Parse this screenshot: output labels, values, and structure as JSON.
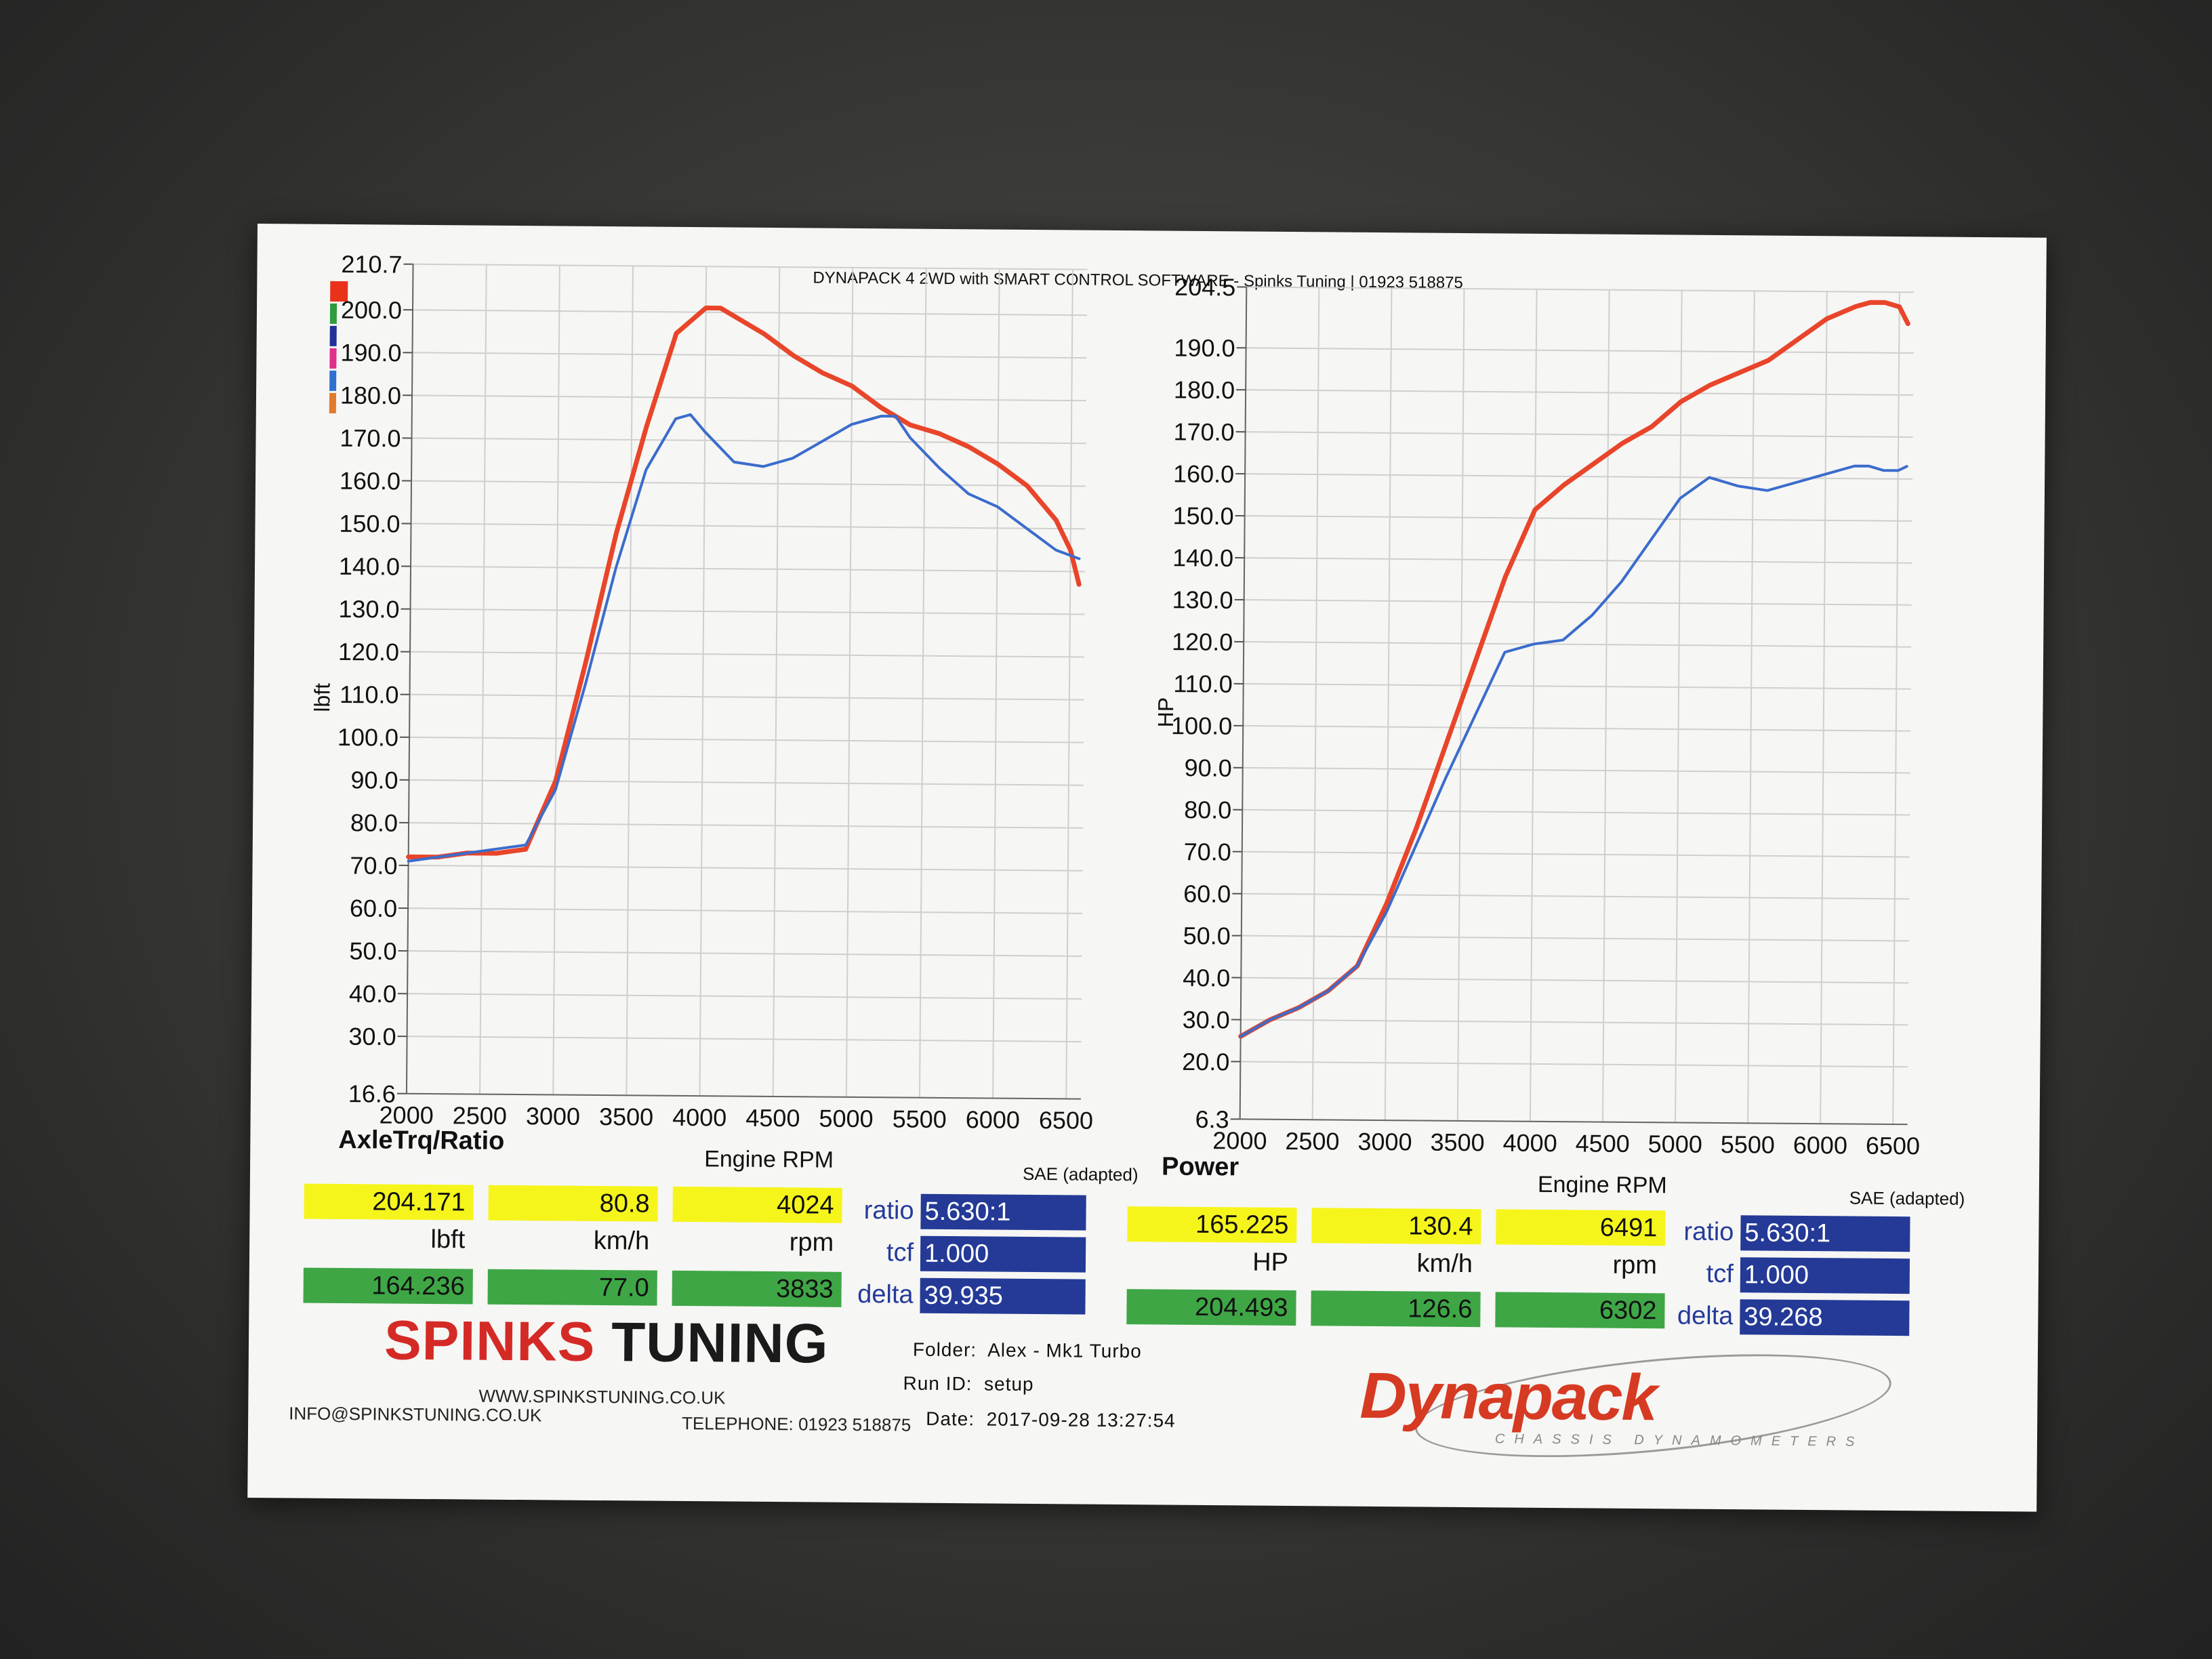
{
  "header": "DYNAPACK 4 2WD with SMART CONTROL SOFTWARE - Spinks Tuning | 01923 518875",
  "legend_swatch_colors": [
    "#e8321a",
    "#2e9c3c",
    "#23309a",
    "#e0308a",
    "#2f6fd0",
    "#e07a2e"
  ],
  "colors": {
    "red": "#e8452a",
    "blue": "#3b6ccc"
  },
  "chart_data": [
    {
      "type": "line",
      "title": "AxleTrq/Ratio",
      "xlabel": "Engine RPM",
      "ylabel": "lbft",
      "note": "SAE (adapted)",
      "xlim": [
        2000,
        6600
      ],
      "ylim": [
        16.6,
        210.7
      ],
      "x_ticks": [
        "2000",
        "2500",
        "3000",
        "3500",
        "4000",
        "4500",
        "5000",
        "5500",
        "6000",
        "6500"
      ],
      "y_ticks": [
        "210.7",
        "200.0",
        "190.0",
        "180.0",
        "170.0",
        "160.0",
        "150.0",
        "140.0",
        "130.0",
        "120.0",
        "110.0",
        "100.0",
        "90.0",
        "80.0",
        "70.0",
        "60.0",
        "50.0",
        "40.0",
        "30.0",
        "16.6"
      ],
      "grid": true,
      "series": [
        {
          "color": "#e8452a",
          "x": [
            2000,
            2200,
            2400,
            2600,
            2800,
            3000,
            3200,
            3400,
            3600,
            3800,
            4000,
            4100,
            4200,
            4400,
            4600,
            4800,
            5000,
            5200,
            5400,
            5600,
            5800,
            6000,
            6200,
            6400,
            6500,
            6560
          ],
          "y": [
            72,
            72,
            73,
            73,
            74,
            90,
            118,
            148,
            173,
            195,
            201,
            201,
            199,
            195,
            190,
            186,
            183,
            178,
            174,
            172,
            169,
            165,
            160,
            152,
            145,
            137
          ]
        },
        {
          "color": "#3b6ccc",
          "x": [
            2000,
            2200,
            2400,
            2600,
            2800,
            3000,
            3200,
            3400,
            3600,
            3800,
            3900,
            4000,
            4200,
            4400,
            4600,
            4800,
            5000,
            5200,
            5300,
            5400,
            5600,
            5800,
            6000,
            6200,
            6400,
            6560
          ],
          "y": [
            71,
            72,
            73,
            74,
            75,
            88,
            113,
            140,
            163,
            175,
            176,
            172,
            165,
            164,
            166,
            170,
            174,
            176,
            176,
            171,
            164,
            158,
            155,
            150,
            145,
            143
          ]
        }
      ]
    },
    {
      "type": "line",
      "title": "Power",
      "xlabel": "Engine RPM",
      "ylabel": "HP",
      "note": "SAE (adapted)",
      "xlim": [
        2000,
        6600
      ],
      "ylim": [
        6.3,
        204.5
      ],
      "x_ticks": [
        "2000",
        "2500",
        "3000",
        "3500",
        "4000",
        "4500",
        "5000",
        "5500",
        "6000",
        "6500"
      ],
      "y_ticks": [
        "204.5",
        "190.0",
        "180.0",
        "170.0",
        "160.0",
        "150.0",
        "140.0",
        "130.0",
        "120.0",
        "110.0",
        "100.0",
        "90.0",
        "80.0",
        "70.0",
        "60.0",
        "50.0",
        "40.0",
        "30.0",
        "20.0",
        "6.3"
      ],
      "grid": true,
      "series": [
        {
          "color": "#e8452a",
          "x": [
            2000,
            2200,
            2400,
            2600,
            2800,
            3000,
            3200,
            3400,
            3600,
            3800,
            4000,
            4200,
            4400,
            4600,
            4800,
            5000,
            5200,
            5400,
            5600,
            5800,
            6000,
            6200,
            6300,
            6400,
            6500,
            6560
          ],
          "y": [
            26,
            30,
            33,
            37,
            43,
            58,
            76,
            96,
            116,
            136,
            152,
            158,
            163,
            168,
            172,
            178,
            182,
            185,
            188,
            193,
            198,
            201,
            202,
            202,
            201,
            197
          ]
        },
        {
          "color": "#3b6ccc",
          "x": [
            2000,
            2200,
            2400,
            2600,
            2800,
            3000,
            3200,
            3400,
            3600,
            3800,
            4000,
            4200,
            4400,
            4600,
            4800,
            5000,
            5200,
            5400,
            5600,
            5800,
            6000,
            6200,
            6300,
            6400,
            6500,
            6560
          ],
          "y": [
            26,
            30,
            33,
            37,
            43,
            56,
            72,
            88,
            103,
            118,
            120,
            121,
            127,
            135,
            145,
            155,
            160,
            158,
            157,
            159,
            161,
            163,
            163,
            162,
            162,
            163
          ]
        }
      ]
    }
  ],
  "left_panel": {
    "yellow": [
      "204.171",
      "80.8",
      "4024"
    ],
    "units": [
      "lbft",
      "km/h",
      "rpm"
    ],
    "green": [
      "164.236",
      "77.0",
      "3833"
    ],
    "labels": [
      "ratio",
      "tcf",
      "delta"
    ],
    "blue": [
      "5.630:1",
      "1.000",
      "39.935"
    ]
  },
  "right_panel": {
    "yellow": [
      "165.225",
      "130.4",
      "6491"
    ],
    "units": [
      "HP",
      "km/h",
      "rpm"
    ],
    "green": [
      "204.493",
      "126.6",
      "6302"
    ],
    "labels": [
      "ratio",
      "tcf",
      "delta"
    ],
    "blue": [
      "5.630:1",
      "1.000",
      "39.268"
    ]
  },
  "brand": {
    "spinks_red": "SPINKS",
    "spinks_black": "TUNING",
    "website": "WWW.SPINKSTUNING.CO.UK",
    "email": "INFO@SPINKSTUNING.CO.UK",
    "telephone": "TELEPHONE: 01923 518875"
  },
  "run_info": {
    "folder_label": "Folder:",
    "folder": "Alex - Mk1 Turbo",
    "run_label": "Run ID:",
    "run": "setup",
    "date_label": "Date:",
    "date": "2017-09-28 13:27:54"
  },
  "dynapack_logo": {
    "word": "Dynapack",
    "tagline": "CHASSIS DYNAMOMETERS"
  }
}
